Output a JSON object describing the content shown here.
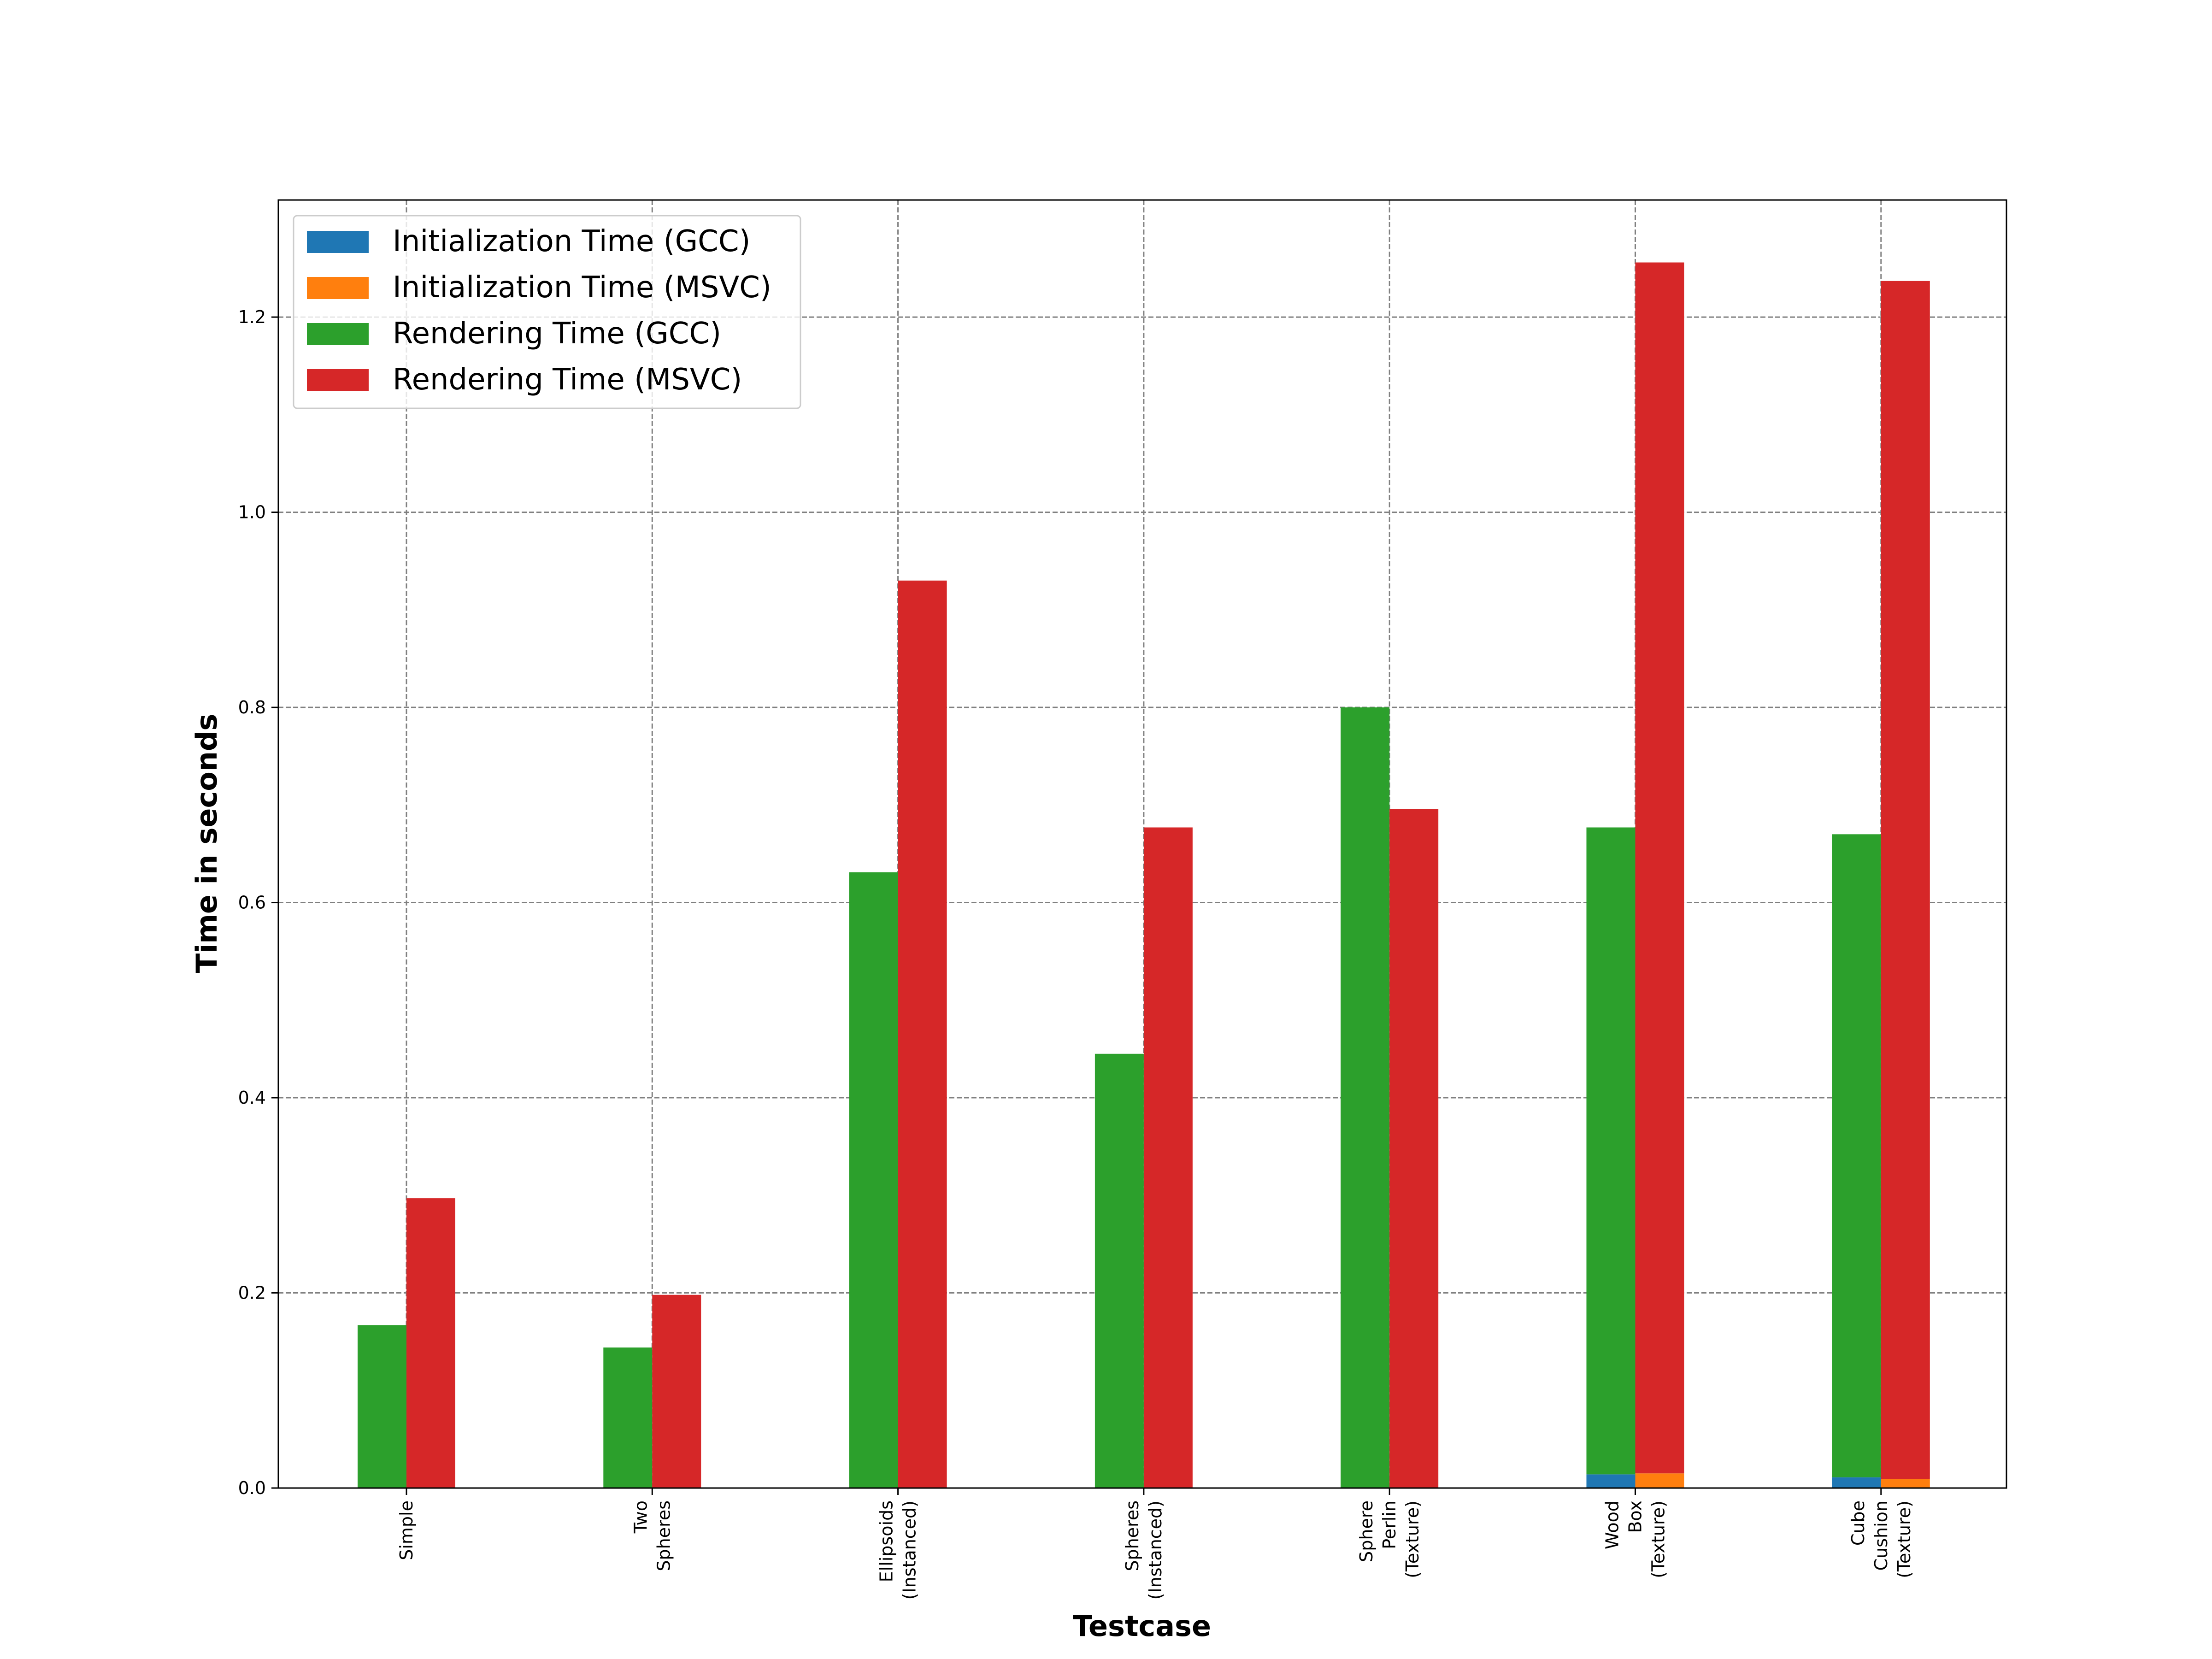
{
  "chart_data": {
    "type": "bar",
    "stacked": true,
    "categories": [
      [
        "Simple"
      ],
      [
        "Two",
        "Spheres"
      ],
      [
        "Ellipsoids",
        "(Instanced)"
      ],
      [
        "Spheres",
        "(Instanced)"
      ],
      [
        "Sphere",
        "Perlin",
        "(Texture)"
      ],
      [
        "Wood",
        "Box",
        "(Texture)"
      ],
      [
        "Cube",
        "Cushion",
        "(Texture)"
      ]
    ],
    "series": [
      {
        "name": "Initialization Time (GCC)",
        "group": "GCC",
        "color": "#1f77b4",
        "values": [
          0.0,
          0.0,
          0.0,
          0.0,
          0.0,
          0.014,
          0.011
        ]
      },
      {
        "name": "Initialization Time (MSVC)",
        "group": "MSVC",
        "color": "#ff7f0e",
        "values": [
          0.0,
          0.0,
          0.0,
          0.0,
          0.0,
          0.015,
          0.009
        ]
      },
      {
        "name": "Rendering Time (GCC)",
        "group": "GCC",
        "color": "#2ca02c",
        "values": [
          0.167,
          0.144,
          0.631,
          0.445,
          0.8,
          0.663,
          0.659
        ]
      },
      {
        "name": "Rendering Time (MSVC)",
        "group": "MSVC",
        "color": "#d62728",
        "values": [
          0.297,
          0.198,
          0.93,
          0.677,
          0.696,
          1.241,
          1.228
        ]
      }
    ],
    "xlabel": "Testcase",
    "ylabel": "Time in seconds",
    "ylim": [
      0,
      1.32
    ],
    "yticks": [
      "0.0",
      "0.2",
      "0.4",
      "0.6",
      "0.8",
      "1.0",
      "1.2"
    ],
    "ytick_values": [
      0.0,
      0.2,
      0.4,
      0.6,
      0.8,
      1.0,
      1.2
    ],
    "grid": true,
    "legend_position": "top-left"
  }
}
